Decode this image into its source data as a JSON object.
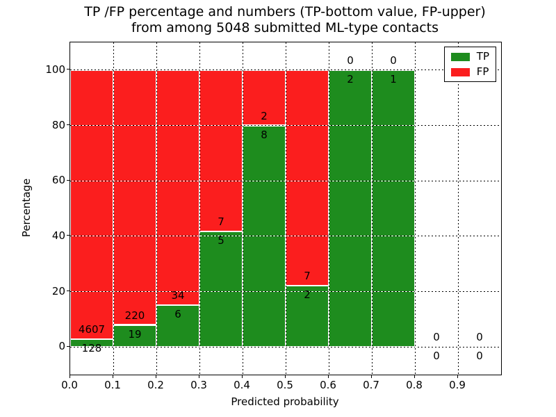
{
  "title_line1": "TP /FP percentage and numbers (TP-bottom value, FP-upper)",
  "title_line2": "from among 5048 submitted ML-type contacts",
  "chart_data": {
    "type": "bar",
    "stacked": true,
    "title": "TP /FP percentage and numbers (TP-bottom value, FP-upper) from among 5048 submitted ML-type contacts",
    "xlabel": "Predicted probability",
    "ylabel": "Percentage",
    "total_contacts": 5048,
    "x_bin_edges": [
      0.0,
      0.1,
      0.2,
      0.3,
      0.4,
      0.5,
      0.6,
      0.7,
      0.8,
      0.9,
      1.0
    ],
    "series": [
      {
        "name": "TP",
        "color": "#1e8c1e",
        "counts": [
          128,
          19,
          6,
          5,
          8,
          2,
          2,
          1,
          0,
          0
        ]
      },
      {
        "name": "FP",
        "color": "#fb1e1e",
        "counts": [
          4607,
          220,
          34,
          7,
          2,
          7,
          0,
          0,
          0,
          0
        ]
      }
    ],
    "tp_percent": [
      2.7,
      7.9,
      15.0,
      41.7,
      80.0,
      22.2,
      100.0,
      100.0,
      0.0,
      0.0
    ],
    "bar_note": "each bin stacks TP (bottom, green) + FP (top, red) to 100% of bin total; empty bins show 0 / 0 labels only",
    "xlim": [
      0.0,
      1.0
    ],
    "ylim": [
      -10,
      110
    ],
    "xticks": [
      "0.0",
      "0.1",
      "0.2",
      "0.3",
      "0.4",
      "0.5",
      "0.6",
      "0.7",
      "0.8",
      "0.9"
    ],
    "yticks": [
      0,
      20,
      40,
      60,
      80,
      100
    ],
    "grid": true,
    "grid_style": "dotted black on white",
    "legend": {
      "position": "upper right"
    },
    "colors": {
      "tp_green": "#1e8c1e",
      "fp_red": "#fb1e1e",
      "text": "#000000",
      "background": "#ffffff"
    }
  }
}
